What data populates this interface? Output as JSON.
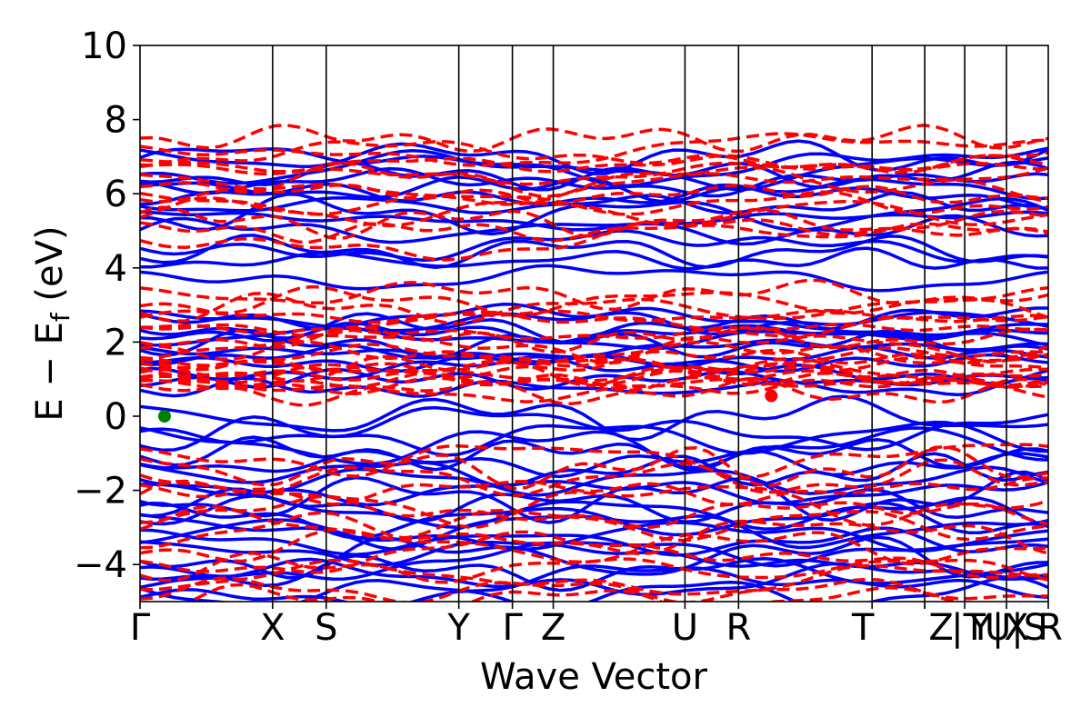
{
  "chart_data": {
    "type": "line",
    "xlabel": "Wave Vector",
    "ylabel": "E − E",
    "ylabel_subscript": "f",
    "ylabel_unit": " (eV)",
    "ylim": [
      -5,
      10
    ],
    "yticks": [
      {
        "value": -4,
        "label": "−4"
      },
      {
        "value": -2,
        "label": "−2"
      },
      {
        "value": 0,
        "label": "0"
      },
      {
        "value": 2,
        "label": "2"
      },
      {
        "value": 4,
        "label": "4"
      },
      {
        "value": 6,
        "label": "6"
      },
      {
        "value": 8,
        "label": "8"
      },
      {
        "value": 10,
        "label": "10"
      }
    ],
    "xlim": [
      0,
      1
    ],
    "kpoints": [
      {
        "x": 0.0,
        "label": "Γ"
      },
      {
        "x": 0.146,
        "label": "X"
      },
      {
        "x": 0.205,
        "label": "S"
      },
      {
        "x": 0.351,
        "label": "Y"
      },
      {
        "x": 0.41,
        "label": "Γ"
      },
      {
        "x": 0.455,
        "label": "Z"
      },
      {
        "x": 0.6,
        "label": "U"
      },
      {
        "x": 0.659,
        "label": "R"
      },
      {
        "x": 0.806,
        "label": "T"
      },
      {
        "x": 0.864,
        "label": "Z"
      },
      {
        "x": 0.864,
        "label": "|T"
      },
      {
        "x": 0.908,
        "label": "Y|X"
      },
      {
        "x": 0.954,
        "label": "U|S"
      },
      {
        "x": 1.0,
        "label": "R"
      }
    ],
    "series": [
      {
        "style": "solid",
        "color": "#0000ff",
        "bands": {
          "conduction": [
            3.75,
            4.2,
            4.45,
            4.6,
            5.0,
            5.3,
            5.45,
            5.7,
            5.95,
            6.15,
            6.3,
            6.5,
            6.65,
            6.8,
            7.0
          ],
          "midgap": [
            0.75,
            1.0,
            1.25,
            1.45,
            1.6,
            1.8,
            1.95,
            2.1,
            2.25,
            2.4,
            2.55,
            2.7
          ],
          "valence": [
            0.0,
            -0.3,
            -0.55,
            -0.8,
            -1.0,
            -1.25,
            -1.5,
            -1.75,
            -2.0,
            -2.2,
            -2.4,
            -2.6,
            -2.8,
            -3.0,
            -3.2,
            -3.4,
            -3.6,
            -3.8,
            -4.0,
            -4.2,
            -4.4,
            -4.6,
            -4.8
          ]
        }
      },
      {
        "style": "dashed",
        "color": "#ff0000",
        "bands": {
          "conduction": [
            4.8,
            5.0,
            5.25,
            5.5,
            5.75,
            6.0,
            6.2,
            6.4,
            6.6,
            6.8,
            7.0,
            7.2,
            7.5
          ],
          "midgap": [
            0.65,
            0.75,
            0.85,
            0.95,
            1.05,
            1.15,
            1.25,
            1.35,
            1.45,
            1.55,
            1.7,
            1.9,
            2.1,
            2.3,
            2.5,
            2.7,
            2.9,
            3.1,
            3.3
          ],
          "valence": [
            -1.1,
            -1.4,
            -1.7,
            -2.0,
            -2.3,
            -2.6,
            -2.9,
            -3.2,
            -3.5,
            -3.8,
            -4.1,
            -4.4,
            -4.7,
            -4.95
          ]
        }
      }
    ],
    "markers": [
      {
        "x": 0.027,
        "y": 0.0,
        "color": "#008000"
      },
      {
        "x": 0.695,
        "y": 0.55,
        "color": "#ff0000"
      }
    ]
  }
}
